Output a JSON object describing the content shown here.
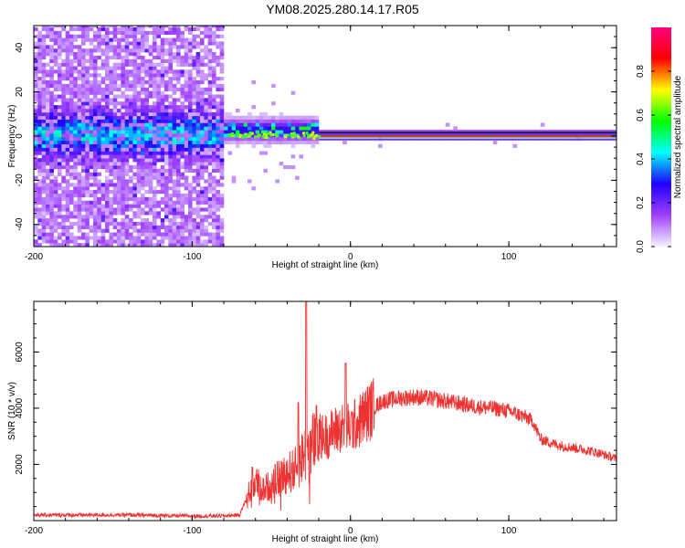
{
  "title": "YM08.2025.280.14.17.R05",
  "chart_data": [
    {
      "type": "heatmap",
      "name": "spectrogram",
      "xlabel": "Height of straight line (km)",
      "ylabel": "Frequency (Hz)",
      "xlim": [
        -200,
        168
      ],
      "ylim": [
        -50,
        50
      ],
      "xticks": [
        -200,
        -100,
        0,
        100
      ],
      "xtick_labels": [
        "-200",
        "-100",
        "0",
        "100"
      ],
      "yticks": [
        -40,
        -20,
        0,
        20,
        40
      ],
      "ytick_labels": [
        "-40",
        "-20",
        "0",
        "20",
        "40"
      ],
      "colorbar": {
        "label": "Normalized spectral amplitude",
        "range": [
          0,
          1
        ],
        "ticks": [
          0.0,
          0.2,
          0.4,
          0.6,
          0.8
        ],
        "tick_labels": [
          "0.0",
          "0.2",
          "0.4",
          "0.6",
          "0.8"
        ],
        "colormap": [
          "#f3f3ff",
          "#9f40ff",
          "#1f00ff",
          "#00ffff",
          "#00ff00",
          "#ffff00",
          "#ff0000",
          "#ff0080"
        ]
      },
      "features": [
        {
          "x_range": [
            -200,
            -80
          ],
          "frequency_band": [
            -50,
            50
          ],
          "note": "broadband noise, dense within -10..10 Hz"
        },
        {
          "x_range": [
            -80,
            -20
          ],
          "frequency_band": [
            -3,
            6
          ],
          "note": "signal onset with green/yellow speckles"
        },
        {
          "x_range": [
            -20,
            168
          ],
          "frequency_band": [
            -1,
            1
          ],
          "note": "stable red line at ~0 Hz"
        }
      ]
    },
    {
      "type": "line",
      "name": "snr",
      "xlabel": "Height of straight line (km)",
      "ylabel": "SNR (10 * v/v)",
      "xlim": [
        -200,
        168
      ],
      "ylim": [
        0,
        7800
      ],
      "xticks": [
        -200,
        -100,
        0,
        100
      ],
      "xtick_labels": [
        "-200",
        "-100",
        "0",
        "100"
      ],
      "yticks": [
        2000,
        4000,
        6000
      ],
      "ytick_labels": [
        "2000",
        "4000",
        "6000"
      ],
      "color": "#ee3333",
      "series": [
        {
          "name": "SNR",
          "x": [
            -200,
            -180,
            -160,
            -140,
            -120,
            -100,
            -80,
            -70,
            -65,
            -60,
            -55,
            -50,
            -45,
            -40,
            -35,
            -30,
            -25,
            -20,
            -15,
            -10,
            -5,
            0,
            5,
            10,
            20,
            30,
            40,
            50,
            60,
            70,
            80,
            90,
            100,
            110,
            115,
            120,
            130,
            140,
            150,
            160,
            168
          ],
          "y": [
            200,
            200,
            200,
            200,
            180,
            160,
            170,
            200,
            900,
            1400,
            1100,
            1300,
            1500,
            1700,
            1800,
            2300,
            2600,
            3000,
            3000,
            3200,
            3300,
            3300,
            3500,
            3800,
            4250,
            4350,
            4400,
            4350,
            4250,
            4150,
            4050,
            4000,
            3900,
            3700,
            3550,
            2900,
            2700,
            2600,
            2500,
            2350,
            2200
          ]
        }
      ],
      "spikes": [
        {
          "x": -28,
          "y": 7800
        },
        {
          "x": -3,
          "y": 5600
        },
        {
          "x": -33,
          "y": 4200
        },
        {
          "x": -62,
          "y": 1900
        }
      ]
    }
  ]
}
